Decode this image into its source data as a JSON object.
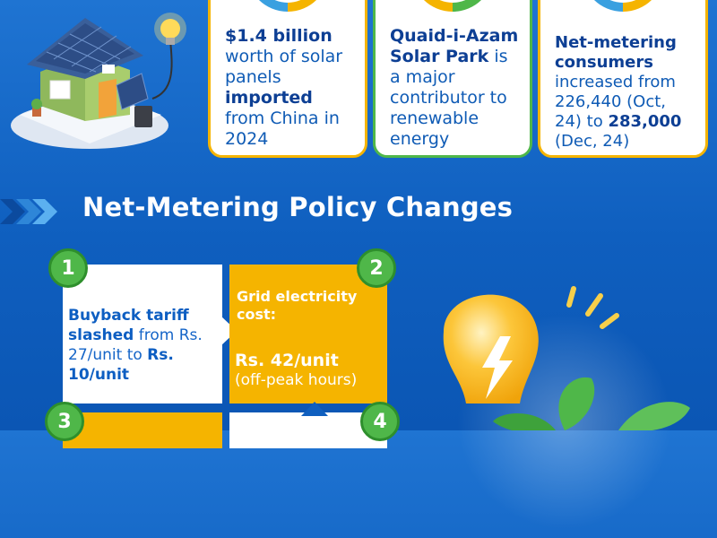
{
  "cards": [
    {
      "bold1": "$1.4 billion",
      "t1": " worth of solar panels ",
      "bold2": "imported",
      "t2": " from China in 2024"
    },
    {
      "bold1": "Quaid-i-Azam Solar Park",
      "t1": " is a major contributor to renewable energy"
    },
    {
      "bold1": "Net-metering consumers",
      "t1": " increased from 226,440 (Oct, 24) to ",
      "bold2": "283,000",
      "t2": " (Dec, 24)"
    }
  ],
  "section": {
    "title": "Net-Metering Policy Changes"
  },
  "policy": {
    "n1": "1",
    "n2": "2",
    "n3": "3",
    "n4": "4",
    "box1": {
      "bold": "Buyback tariff slashed",
      "t1": " from Rs. 27/unit to ",
      "bold2": "Rs. 10/unit"
    },
    "box2": {
      "head": "Grid electricity cost:",
      "price": "Rs. 42/unit",
      "note": "(off-peak hours)"
    }
  },
  "colors": {
    "blue": "#1565c8",
    "dark_blue": "#0d3f94",
    "yellow": "#f5b400",
    "green": "#4fb749"
  }
}
